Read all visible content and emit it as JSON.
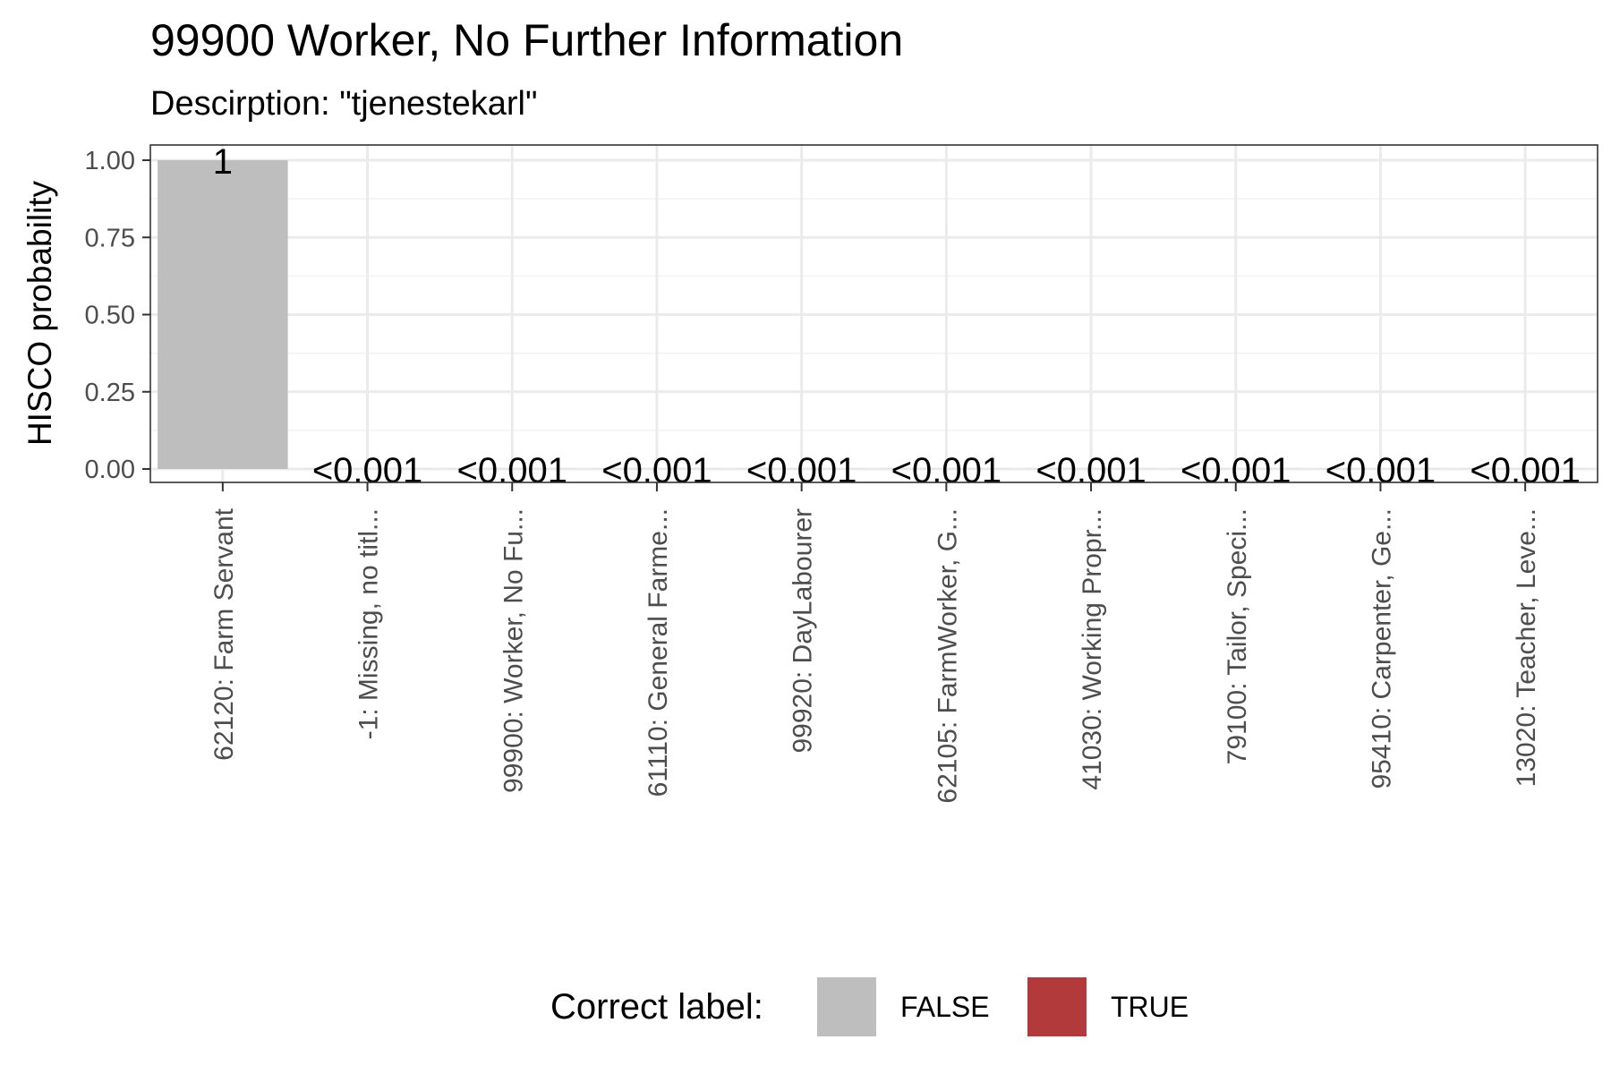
{
  "chart_data": {
    "type": "bar",
    "title": "99900 Worker, No Further Information",
    "subtitle": "Descirption: \"tjenestekarl\"",
    "xlabel": "",
    "ylabel": "HISCO probability",
    "ylim": [
      0,
      1
    ],
    "yticks": [
      "0.00",
      "0.25",
      "0.50",
      "0.75",
      "1.00"
    ],
    "ytick_values": [
      0,
      0.25,
      0.5,
      0.75,
      1.0
    ],
    "grid": true,
    "legend_position": "bottom",
    "categories": [
      "62120: Farm Servant",
      "-1: Missing, no titl...",
      "99900: Worker, No Fu...",
      "61110: General Farme...",
      "99920: DayLabourer",
      "62105: FarmWorker, G...",
      "41030: Working Propr...",
      "79100: Tailor, Speci...",
      "95410: Carpenter, Ge...",
      "13020: Teacher, Leve..."
    ],
    "values": [
      1.0,
      0.0005,
      0.0005,
      0.0005,
      0.0005,
      0.0005,
      0.0005,
      0.0005,
      0.0005,
      0.0005
    ],
    "data_labels": [
      "1",
      "<0.001",
      "<0.001",
      "<0.001",
      "<0.001",
      "<0.001",
      "<0.001",
      "<0.001",
      "<0.001",
      "<0.001"
    ],
    "correct": [
      false,
      false,
      false,
      false,
      false,
      false,
      false,
      false,
      false,
      false
    ],
    "legend": {
      "title": "Correct label:",
      "entries": [
        {
          "label": "FALSE",
          "color": "#bebebe"
        },
        {
          "label": "TRUE",
          "color": "#b33a3a"
        }
      ]
    },
    "colors": {
      "false": "#bebebe",
      "true": "#b33a3a"
    }
  }
}
